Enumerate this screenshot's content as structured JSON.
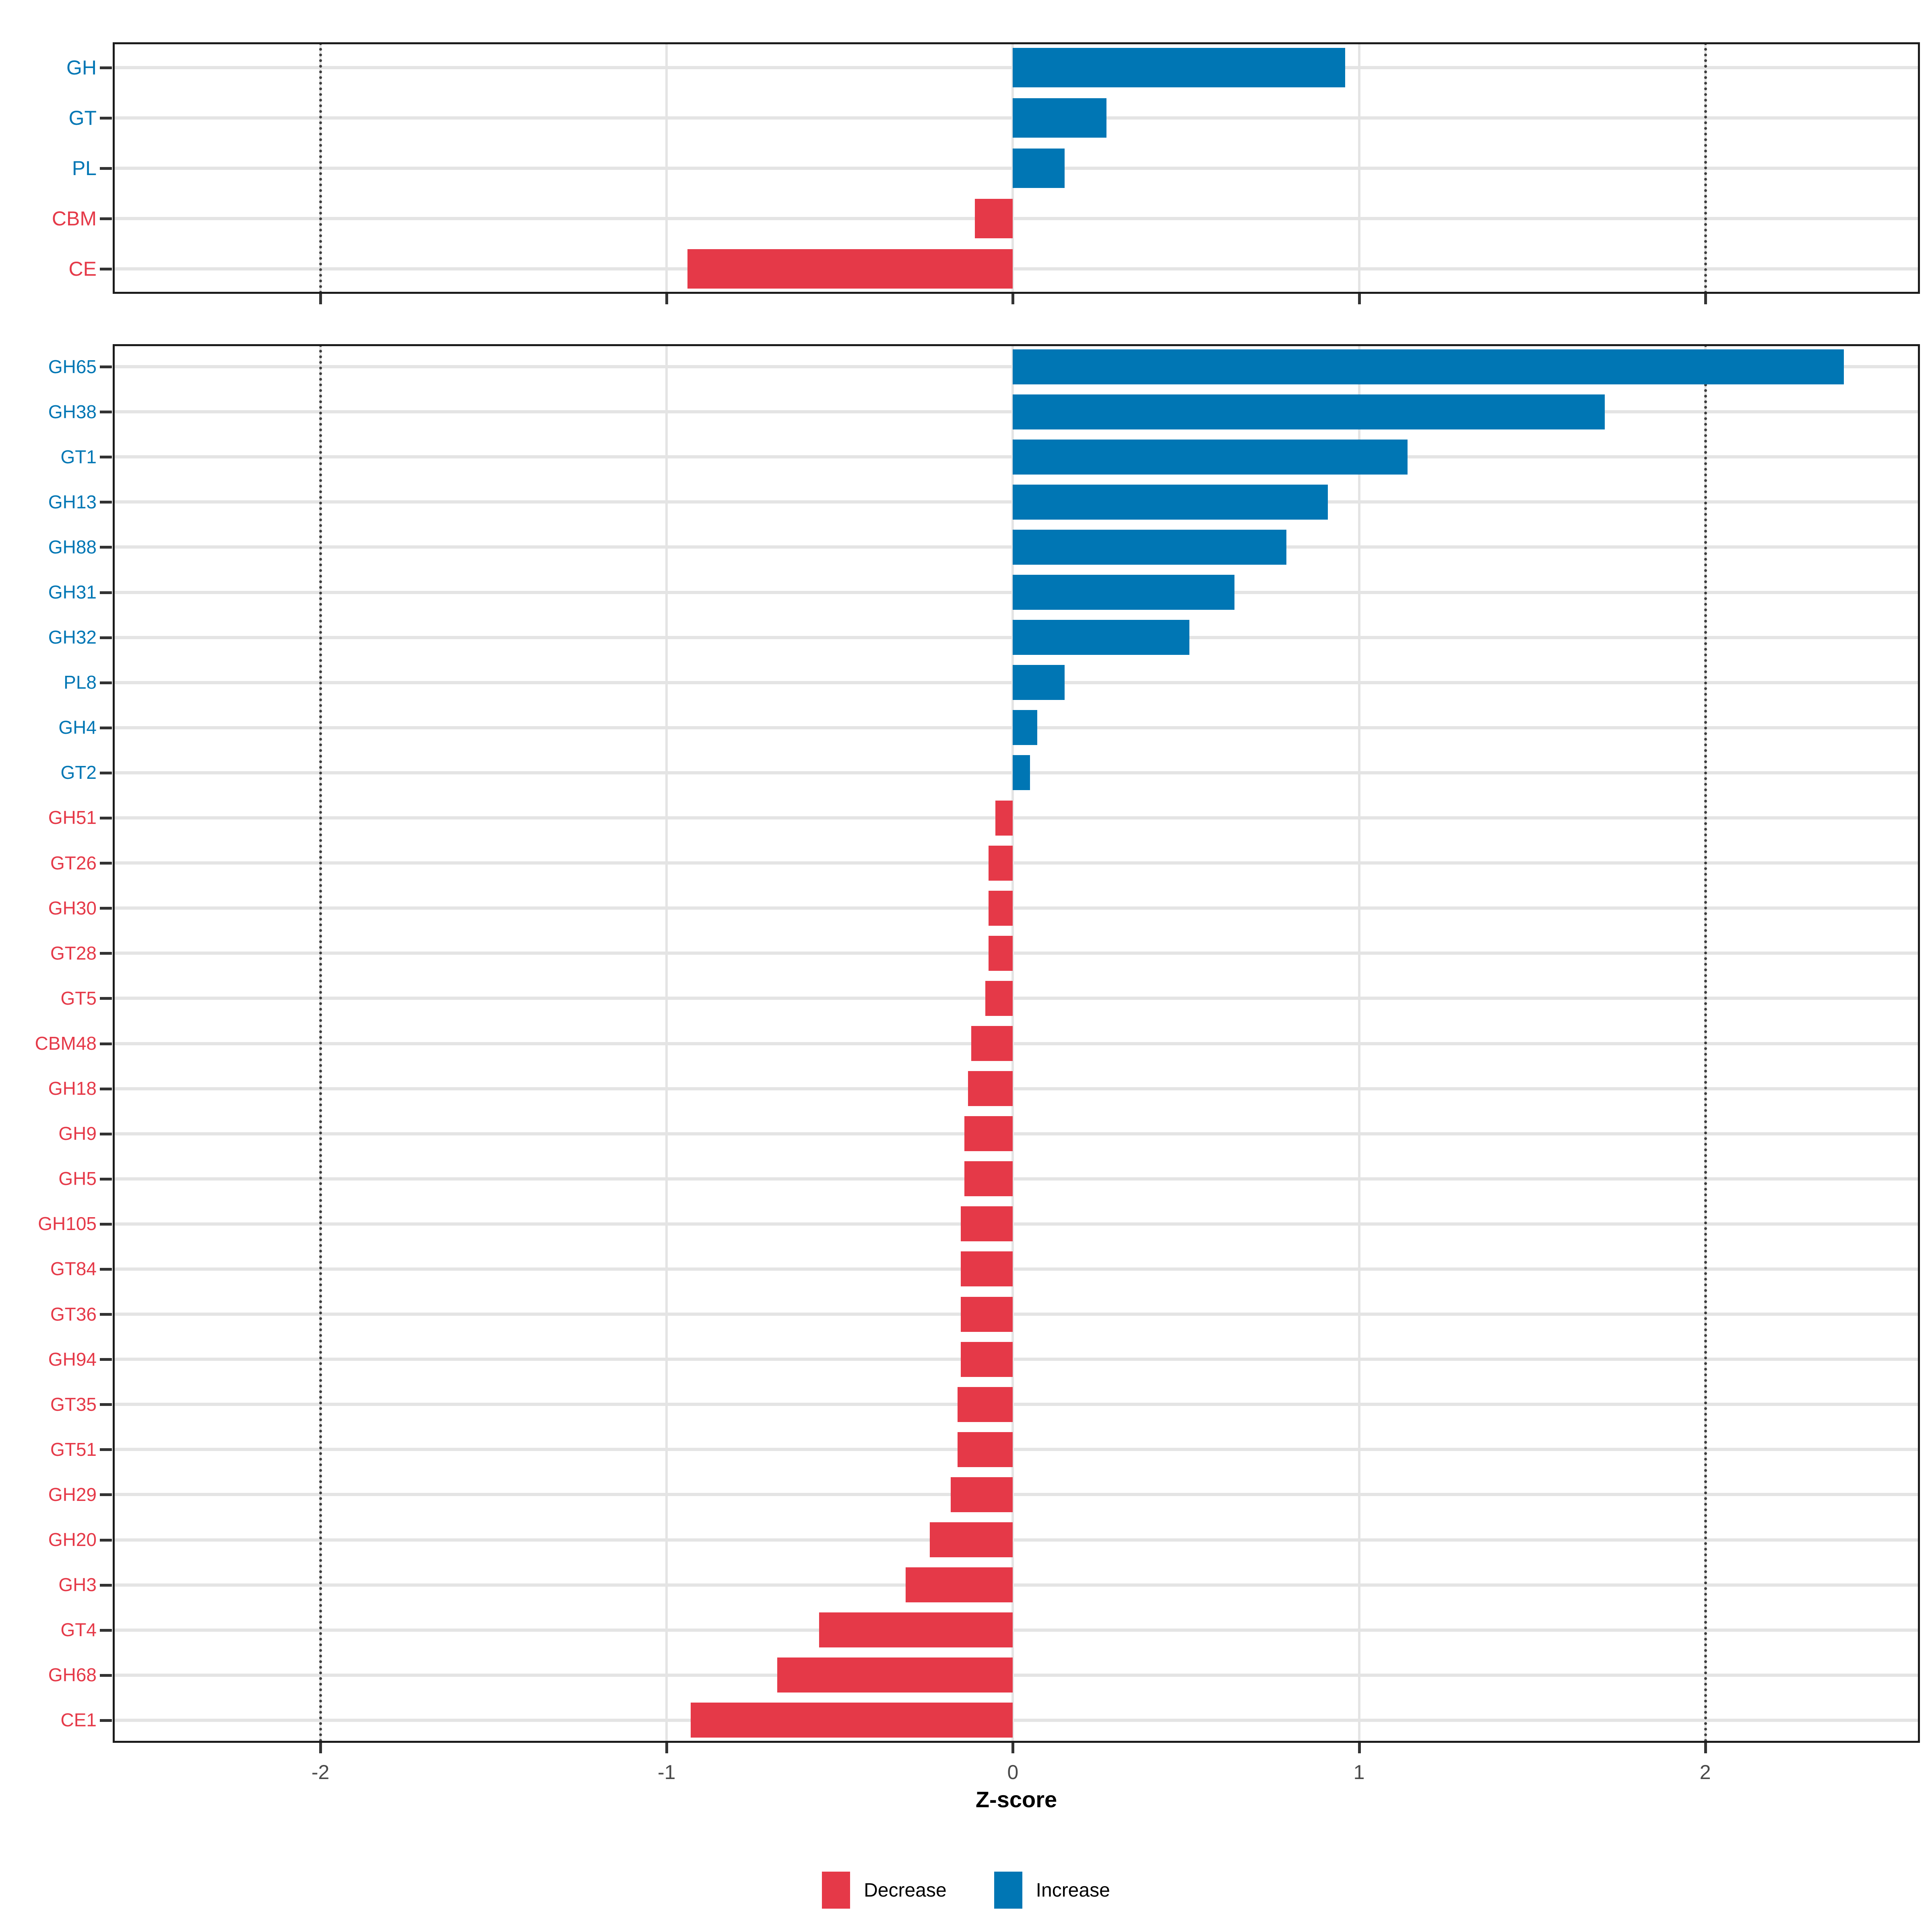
{
  "x_axis": {
    "label": "Z-score",
    "tick_labels": [
      "-2",
      "-1",
      "0",
      "1",
      "2"
    ],
    "tick_values": [
      -2,
      -1,
      0,
      1,
      2
    ],
    "range": [
      -2.6,
      2.62
    ],
    "dotted_vlines": [
      -2,
      2
    ],
    "grid": true
  },
  "legend": {
    "position": "bottom",
    "items": [
      {
        "label": "Decrease",
        "color": "#E53948"
      },
      {
        "label": "Increase",
        "color": "#0076B4"
      }
    ]
  },
  "colors": {
    "decrease": "#E53948",
    "increase": "#0076B4",
    "grid": "#E4E4E4",
    "panel_border": "#1C1C1C",
    "tick": "#333333",
    "tick_label": "#4A4A4A",
    "dotted_line": "#3E3E3E",
    "background": "#FFFFFF"
  },
  "chart_data": [
    {
      "type": "bar",
      "orientation": "horizontal",
      "panel": "cazyme-classes",
      "title": "",
      "xlabel": "Z-score",
      "ylabel": "",
      "xlim": [
        -2.6,
        2.62
      ],
      "grid": true,
      "categories": [
        "GH",
        "GT",
        "PL",
        "CBM",
        "CE"
      ],
      "values": [
        0.96,
        0.27,
        0.15,
        -0.11,
        -0.94
      ],
      "directions": [
        "Increase",
        "Increase",
        "Increase",
        "Decrease",
        "Decrease"
      ]
    },
    {
      "type": "bar",
      "orientation": "horizontal",
      "panel": "cazyme-families",
      "title": "",
      "xlabel": "Z-score",
      "ylabel": "",
      "xlim": [
        -2.6,
        2.62
      ],
      "grid": true,
      "categories": [
        "GH65",
        "GH38",
        "GT1",
        "GH13",
        "GH88",
        "GH31",
        "GH32",
        "PL8",
        "GH4",
        "GT2",
        "GH51",
        "GT26",
        "GH30",
        "GT28",
        "GT5",
        "CBM48",
        "GH18",
        "GH9",
        "GH5",
        "GH105",
        "GT84",
        "GT36",
        "GH94",
        "GT35",
        "GT51",
        "GH29",
        "GH20",
        "GH3",
        "GT4",
        "GH68",
        "CE1"
      ],
      "values": [
        2.4,
        1.71,
        1.14,
        0.91,
        0.79,
        0.64,
        0.51,
        0.15,
        0.07,
        0.05,
        -0.05,
        -0.07,
        -0.07,
        -0.07,
        -0.08,
        -0.12,
        -0.13,
        -0.14,
        -0.14,
        -0.15,
        -0.15,
        -0.15,
        -0.15,
        -0.16,
        -0.16,
        -0.18,
        -0.24,
        -0.31,
        -0.56,
        -0.68,
        -0.93
      ],
      "directions": [
        "Increase",
        "Increase",
        "Increase",
        "Increase",
        "Increase",
        "Increase",
        "Increase",
        "Increase",
        "Increase",
        "Increase",
        "Decrease",
        "Decrease",
        "Decrease",
        "Decrease",
        "Decrease",
        "Decrease",
        "Decrease",
        "Decrease",
        "Decrease",
        "Decrease",
        "Decrease",
        "Decrease",
        "Decrease",
        "Decrease",
        "Decrease",
        "Decrease",
        "Decrease",
        "Decrease",
        "Decrease",
        "Decrease",
        "Decrease"
      ]
    }
  ]
}
